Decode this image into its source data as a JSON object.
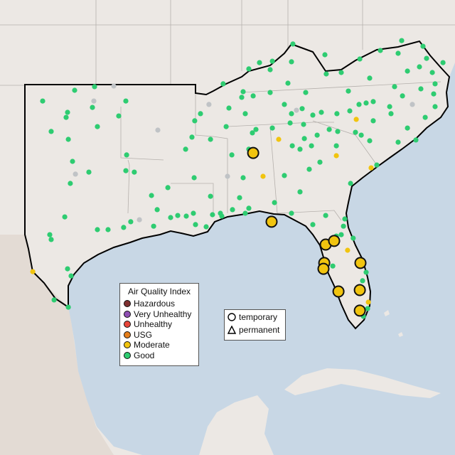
{
  "colors": {
    "water": "#c8d7e5",
    "land": "#ece8e4",
    "mexico": "#e3dbd4",
    "outline": "#000000",
    "border": "#b5b0ac"
  },
  "aqi_legend": {
    "title": "Air Quality Index",
    "items": [
      {
        "label": "Hazardous",
        "color": "#7e2f2f"
      },
      {
        "label": "Very Unhealthy",
        "color": "#8f4fb3"
      },
      {
        "label": "Unhealthy",
        "color": "#e8463a"
      },
      {
        "label": "USG",
        "color": "#e57f1c"
      },
      {
        "label": "Moderate",
        "color": "#f1c40f"
      },
      {
        "label": "Good",
        "color": "#2ecc71"
      }
    ]
  },
  "type_legend": {
    "items": [
      {
        "label": "temporary",
        "shape": "circle"
      },
      {
        "label": "permanent",
        "shape": "triangle"
      }
    ]
  },
  "category_colors": {
    "Moderate": "#f1c40f",
    "Good": "#2ecc71",
    "None": "#c0c3c6"
  },
  "markers": [
    {
      "lon": -88.22,
      "lat": 33.62,
      "aqi": "Moderate",
      "large": true
    },
    {
      "lon": -87.03,
      "lat": 30.21,
      "aqi": "Moderate",
      "large": true
    },
    {
      "lon": -83.53,
      "lat": 29.08,
      "aqi": "Moderate",
      "large": true
    },
    {
      "lon": -82.98,
      "lat": 29.26,
      "aqi": "Moderate",
      "large": true
    },
    {
      "lon": -83.62,
      "lat": 28.17,
      "aqi": "Moderate",
      "large": true
    },
    {
      "lon": -83.67,
      "lat": 27.88,
      "aqi": "Moderate",
      "large": true
    },
    {
      "lon": -81.28,
      "lat": 28.17,
      "aqi": "Moderate",
      "large": true
    },
    {
      "lon": -82.7,
      "lat": 26.76,
      "aqi": "Moderate",
      "large": true
    },
    {
      "lon": -81.32,
      "lat": 26.83,
      "aqi": "Moderate",
      "large": true
    },
    {
      "lon": -81.32,
      "lat": 25.81,
      "aqi": "Moderate",
      "large": true
    },
    {
      "lon": -86.57,
      "lat": 34.29,
      "aqi": "Moderate"
    },
    {
      "lon": -87.58,
      "lat": 32.46,
      "aqi": "Moderate"
    },
    {
      "lon": -81.55,
      "lat": 35.28,
      "aqi": "Moderate"
    },
    {
      "lon": -82.84,
      "lat": 33.48,
      "aqi": "Moderate"
    },
    {
      "lon": -80.59,
      "lat": 32.88,
      "aqi": "Moderate"
    },
    {
      "lon": -82.11,
      "lat": 28.8,
      "aqi": "Moderate"
    },
    {
      "lon": -80.77,
      "lat": 26.23,
      "aqi": "Moderate"
    },
    {
      "lon": -102.48,
      "lat": 27.74,
      "aqi": "Moderate"
    },
    {
      "lon": -98.53,
      "lat": 36.19,
      "aqi": "None"
    },
    {
      "lon": -99.72,
      "lat": 32.57,
      "aqi": "None"
    },
    {
      "lon": -95.58,
      "lat": 30.31,
      "aqi": "None"
    },
    {
      "lon": -89.88,
      "lat": 32.46,
      "aqi": "None"
    },
    {
      "lon": -91.08,
      "lat": 36.02,
      "aqi": "None"
    },
    {
      "lon": -77.92,
      "lat": 36.02,
      "aqi": "None"
    },
    {
      "lon": -85.42,
      "lat": 35.73,
      "aqi": "None"
    },
    {
      "lon": -94.39,
      "lat": 34.75,
      "aqi": "None"
    },
    {
      "lon": -97.24,
      "lat": 36.93,
      "aqi": "None"
    },
    {
      "lon": -101.84,
      "lat": 36.19,
      "aqi": "Good"
    },
    {
      "lon": -99.77,
      "lat": 36.72,
      "aqi": "Good"
    },
    {
      "lon": -98.48,
      "lat": 36.9,
      "aqi": "Good"
    },
    {
      "lon": -96.46,
      "lat": 36.19,
      "aqi": "Good"
    },
    {
      "lon": -98.62,
      "lat": 35.87,
      "aqi": "Good"
    },
    {
      "lon": -100.23,
      "lat": 35.63,
      "aqi": "Good"
    },
    {
      "lon": -100.32,
      "lat": 35.38,
      "aqi": "Good"
    },
    {
      "lon": -96.92,
      "lat": 35.45,
      "aqi": "Good"
    },
    {
      "lon": -101.29,
      "lat": 34.68,
      "aqi": "Good"
    },
    {
      "lon": -100.18,
      "lat": 34.29,
      "aqi": "Good"
    },
    {
      "lon": -98.3,
      "lat": 34.92,
      "aqi": "Good"
    },
    {
      "lon": -96.41,
      "lat": 33.52,
      "aqi": "Good"
    },
    {
      "lon": -99.91,
      "lat": 33.2,
      "aqi": "Good"
    },
    {
      "lon": -98.85,
      "lat": 32.67,
      "aqi": "Good"
    },
    {
      "lon": -96.46,
      "lat": 32.74,
      "aqi": "Good"
    },
    {
      "lon": -95.91,
      "lat": 32.67,
      "aqi": "Good"
    },
    {
      "lon": -100.05,
      "lat": 32.11,
      "aqi": "Good"
    },
    {
      "lon": -100.41,
      "lat": 30.45,
      "aqi": "Good"
    },
    {
      "lon": -101.38,
      "lat": 29.57,
      "aqi": "Good"
    },
    {
      "lon": -101.29,
      "lat": 29.33,
      "aqi": "Good"
    },
    {
      "lon": -97.61,
      "lat": 29.82,
      "aqi": "Good"
    },
    {
      "lon": -98.3,
      "lat": 29.82,
      "aqi": "Good"
    },
    {
      "lon": -96.6,
      "lat": 29.93,
      "aqi": "Good"
    },
    {
      "lon": -96.14,
      "lat": 30.21,
      "aqi": "Good"
    },
    {
      "lon": -94.66,
      "lat": 29.99,
      "aqi": "Good"
    },
    {
      "lon": -93.56,
      "lat": 30.42,
      "aqi": "Good"
    },
    {
      "lon": -92.55,
      "lat": 30.49,
      "aqi": "Good"
    },
    {
      "lon": -91.95,
      "lat": 30.07,
      "aqi": "Good"
    },
    {
      "lon": -91.26,
      "lat": 29.96,
      "aqi": "Good"
    },
    {
      "lon": -92.09,
      "lat": 30.63,
      "aqi": "Good"
    },
    {
      "lon": -93.74,
      "lat": 31.9,
      "aqi": "Good"
    },
    {
      "lon": -100.23,
      "lat": 27.88,
      "aqi": "Good"
    },
    {
      "lon": -100.0,
      "lat": 27.53,
      "aqi": "Good"
    },
    {
      "lon": -101.1,
      "lat": 26.34,
      "aqi": "Good"
    },
    {
      "lon": -100.18,
      "lat": 25.98,
      "aqi": "Good"
    },
    {
      "lon": -94.8,
      "lat": 31.51,
      "aqi": "Good"
    },
    {
      "lon": -94.43,
      "lat": 30.81,
      "aqi": "Good"
    },
    {
      "lon": -92.0,
      "lat": 35.21,
      "aqi": "Good"
    },
    {
      "lon": -91.63,
      "lat": 35.56,
      "aqi": "Good"
    },
    {
      "lon": -92.18,
      "lat": 34.4,
      "aqi": "Good"
    },
    {
      "lon": -92.59,
      "lat": 33.8,
      "aqi": "Good"
    },
    {
      "lon": -90.98,
      "lat": 34.29,
      "aqi": "Good"
    },
    {
      "lon": -92.04,
      "lat": 32.39,
      "aqi": "Good"
    },
    {
      "lon": -90.98,
      "lat": 31.47,
      "aqi": "Good"
    },
    {
      "lon": -90.85,
      "lat": 30.56,
      "aqi": "Good"
    },
    {
      "lon": -90.25,
      "lat": 30.49,
      "aqi": "Good"
    },
    {
      "lon": -89.56,
      "lat": 30.81,
      "aqi": "Good"
    },
    {
      "lon": -89.1,
      "lat": 31.4,
      "aqi": "Good"
    },
    {
      "lon": -89.6,
      "lat": 33.52,
      "aqi": "Good"
    },
    {
      "lon": -88.5,
      "lat": 33.8,
      "aqi": "Good"
    },
    {
      "lon": -88.27,
      "lat": 34.61,
      "aqi": "Good"
    },
    {
      "lon": -89.97,
      "lat": 34.92,
      "aqi": "Good"
    },
    {
      "lon": -89.79,
      "lat": 35.84,
      "aqi": "Good"
    },
    {
      "lon": -88.96,
      "lat": 36.37,
      "aqi": "Good"
    },
    {
      "lon": -88.73,
      "lat": 35.56,
      "aqi": "Good"
    },
    {
      "lon": -88.87,
      "lat": 36.65,
      "aqi": "Good"
    },
    {
      "lon": -90.16,
      "lat": 37.04,
      "aqi": "Good"
    },
    {
      "lon": -88.5,
      "lat": 37.78,
      "aqi": "Good"
    },
    {
      "lon": -87.81,
      "lat": 38.09,
      "aqi": "Good"
    },
    {
      "lon": -87.12,
      "lat": 37.74,
      "aqi": "Good"
    },
    {
      "lon": -86.98,
      "lat": 38.16,
      "aqi": "Good"
    },
    {
      "lon": -85.74,
      "lat": 38.13,
      "aqi": "Good"
    },
    {
      "lon": -85.65,
      "lat": 39.01,
      "aqi": "Good"
    },
    {
      "lon": -83.58,
      "lat": 38.48,
      "aqi": "Good"
    },
    {
      "lon": -83.49,
      "lat": 37.53,
      "aqi": "Good"
    },
    {
      "lon": -82.52,
      "lat": 37.6,
      "aqi": "Good"
    },
    {
      "lon": -81.32,
      "lat": 38.27,
      "aqi": "Good"
    },
    {
      "lon": -79.99,
      "lat": 38.69,
      "aqi": "Good"
    },
    {
      "lon": -78.84,
      "lat": 38.55,
      "aqi": "Good"
    },
    {
      "lon": -78.61,
      "lat": 39.18,
      "aqi": "Good"
    },
    {
      "lon": -77.23,
      "lat": 38.9,
      "aqi": "Good"
    },
    {
      "lon": -77.0,
      "lat": 38.3,
      "aqi": "Good"
    },
    {
      "lon": -77.46,
      "lat": 37.88,
      "aqi": "Good"
    },
    {
      "lon": -76.63,
      "lat": 37.6,
      "aqi": "Good"
    },
    {
      "lon": -75.94,
      "lat": 38.09,
      "aqi": "Good"
    },
    {
      "lon": -76.45,
      "lat": 37.04,
      "aqi": "Good"
    },
    {
      "lon": -78.24,
      "lat": 37.67,
      "aqi": "Good"
    },
    {
      "lon": -79.07,
      "lat": 36.9,
      "aqi": "Good"
    },
    {
      "lon": -80.68,
      "lat": 37.32,
      "aqi": "Good"
    },
    {
      "lon": -82.06,
      "lat": 36.68,
      "aqi": "Good"
    },
    {
      "lon": -84.82,
      "lat": 36.61,
      "aqi": "Good"
    },
    {
      "lon": -85.97,
      "lat": 37.07,
      "aqi": "Good"
    },
    {
      "lon": -87.12,
      "lat": 36.61,
      "aqi": "Good"
    },
    {
      "lon": -88.22,
      "lat": 36.44,
      "aqi": "Good"
    },
    {
      "lon": -86.2,
      "lat": 36.02,
      "aqi": "Good"
    },
    {
      "lon": -85.74,
      "lat": 35.56,
      "aqi": "Good"
    },
    {
      "lon": -85.05,
      "lat": 35.81,
      "aqi": "Good"
    },
    {
      "lon": -84.36,
      "lat": 35.49,
      "aqi": "Good"
    },
    {
      "lon": -84.96,
      "lat": 35.03,
      "aqi": "Good"
    },
    {
      "lon": -85.83,
      "lat": 35.1,
      "aqi": "Good"
    },
    {
      "lon": -86.98,
      "lat": 34.85,
      "aqi": "Good"
    },
    {
      "lon": -88.04,
      "lat": 34.78,
      "aqi": "Good"
    },
    {
      "lon": -83.81,
      "lat": 35.63,
      "aqi": "Good"
    },
    {
      "lon": -82.8,
      "lat": 35.56,
      "aqi": "Good"
    },
    {
      "lon": -81.97,
      "lat": 35.7,
      "aqi": "Good"
    },
    {
      "lon": -81.37,
      "lat": 36.02,
      "aqi": "Good"
    },
    {
      "lon": -80.91,
      "lat": 36.09,
      "aqi": "Good"
    },
    {
      "lon": -80.45,
      "lat": 36.16,
      "aqi": "Good"
    },
    {
      "lon": -79.39,
      "lat": 35.91,
      "aqi": "Good"
    },
    {
      "lon": -78.56,
      "lat": 36.44,
      "aqi": "Good"
    },
    {
      "lon": -79.3,
      "lat": 35.56,
      "aqi": "Good"
    },
    {
      "lon": -80.45,
      "lat": 35.21,
      "aqi": "Good"
    },
    {
      "lon": -81.6,
      "lat": 34.64,
      "aqi": "Good"
    },
    {
      "lon": -82.75,
      "lat": 34.68,
      "aqi": "Good"
    },
    {
      "lon": -83.3,
      "lat": 34.78,
      "aqi": "Good"
    },
    {
      "lon": -84.08,
      "lat": 34.5,
      "aqi": "Good"
    },
    {
      "lon": -84.91,
      "lat": 34.33,
      "aqi": "Good"
    },
    {
      "lon": -84.45,
      "lat": 33.97,
      "aqi": "Good"
    },
    {
      "lon": -85.19,
      "lat": 33.8,
      "aqi": "Good"
    },
    {
      "lon": -85.69,
      "lat": 33.97,
      "aqi": "Good"
    },
    {
      "lon": -82.84,
      "lat": 33.97,
      "aqi": "Good"
    },
    {
      "lon": -81.23,
      "lat": 34.5,
      "aqi": "Good"
    },
    {
      "lon": -80.68,
      "lat": 34.22,
      "aqi": "Good"
    },
    {
      "lon": -78.84,
      "lat": 34.15,
      "aqi": "Good"
    },
    {
      "lon": -78.24,
      "lat": 34.85,
      "aqi": "Good"
    },
    {
      "lon": -77.09,
      "lat": 35.38,
      "aqi": "Good"
    },
    {
      "lon": -76.45,
      "lat": 35.91,
      "aqi": "Good"
    },
    {
      "lon": -77.37,
      "lat": 36.79,
      "aqi": "Good"
    },
    {
      "lon": -76.54,
      "lat": 36.54,
      "aqi": "Good"
    },
    {
      "lon": -77.69,
      "lat": 34.26,
      "aqi": "Good"
    },
    {
      "lon": -80.22,
      "lat": 33.02,
      "aqi": "Good"
    },
    {
      "lon": -81.92,
      "lat": 32.11,
      "aqi": "Good"
    },
    {
      "lon": -84.59,
      "lat": 32.81,
      "aqi": "Good"
    },
    {
      "lon": -86.2,
      "lat": 32.5,
      "aqi": "Good"
    },
    {
      "lon": -85.19,
      "lat": 31.69,
      "aqi": "Good"
    },
    {
      "lon": -86.84,
      "lat": 31.16,
      "aqi": "Good"
    },
    {
      "lon": -88.5,
      "lat": 30.88,
      "aqi": "Good"
    },
    {
      "lon": -88.73,
      "lat": 30.63,
      "aqi": "Good"
    },
    {
      "lon": -85.74,
      "lat": 30.63,
      "aqi": "Good"
    },
    {
      "lon": -84.36,
      "lat": 30.07,
      "aqi": "Good"
    },
    {
      "lon": -83.53,
      "lat": 30.52,
      "aqi": "Good"
    },
    {
      "lon": -82.29,
      "lat": 30.35,
      "aqi": "Good"
    },
    {
      "lon": -82.38,
      "lat": 29.99,
      "aqi": "Good"
    },
    {
      "lon": -82.52,
      "lat": 29.57,
      "aqi": "Good"
    },
    {
      "lon": -81.75,
      "lat": 29.4,
      "aqi": "Good"
    },
    {
      "lon": -82.84,
      "lat": 29.5,
      "aqi": "Good"
    },
    {
      "lon": -81.14,
      "lat": 27.29,
      "aqi": "Good"
    },
    {
      "lon": -80.82,
      "lat": 25.91,
      "aqi": "Good"
    },
    {
      "lon": -81.09,
      "lat": 25.53,
      "aqi": "Good"
    },
    {
      "lon": -83.9,
      "lat": 33.16,
      "aqi": "Good"
    },
    {
      "lon": -88.87,
      "lat": 32.39,
      "aqi": "Good"
    },
    {
      "lon": -90.34,
      "lat": 30.63,
      "aqi": "Good"
    },
    {
      "lon": -93.1,
      "lat": 30.52,
      "aqi": "Good"
    },
    {
      "lon": -83.07,
      "lat": 28.02,
      "aqi": "Good"
    },
    {
      "lon": -80.91,
      "lat": 27.71,
      "aqi": "Good"
    }
  ]
}
